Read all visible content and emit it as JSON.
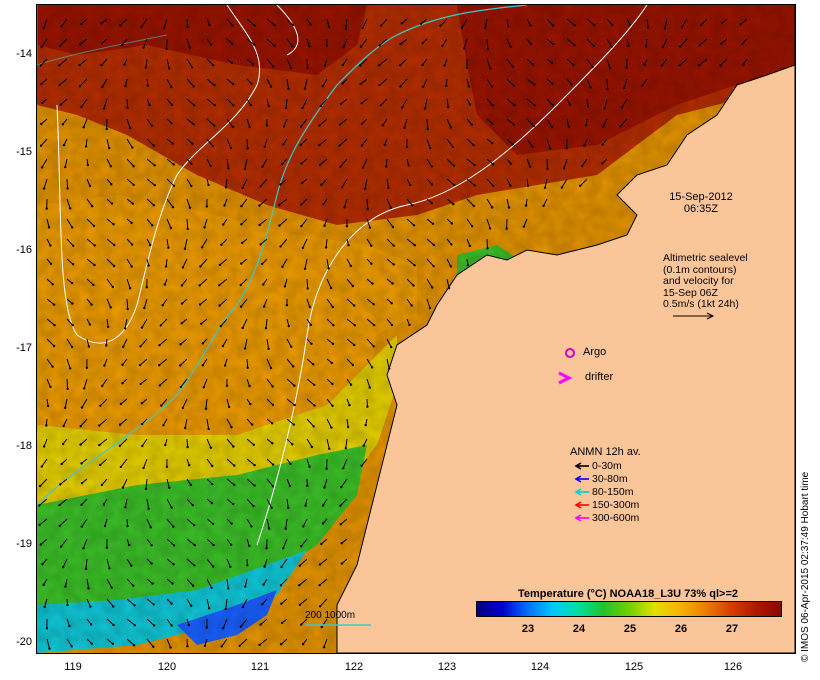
{
  "map": {
    "y_axis_labels": [
      "-14",
      "-15",
      "-16",
      "-17",
      "-18",
      "-19",
      "-20"
    ],
    "x_axis_labels": [
      "119",
      "120",
      "121",
      "122",
      "123",
      "124",
      "125",
      "126"
    ],
    "lon_range": [
      118.6,
      126.7
    ],
    "lat_range": [
      -20.05,
      -13.6
    ]
  },
  "annotations": {
    "date": "15-Sep-2012",
    "time": "06:35Z",
    "altimetry_lines": [
      "Altimetric sealevel",
      "(0.1m contours)",
      "and velocity for",
      "15-Sep 06Z",
      "0.5m/s (1kt 24h)"
    ],
    "argo_label": "Argo",
    "drifter_label": "drifter",
    "bathy_label": "200  1000m"
  },
  "legend": {
    "title": "ANMN 12h av.",
    "items": [
      {
        "label": "0-30m",
        "color": "#000000"
      },
      {
        "label": "30-80m",
        "color": "#0000ff"
      },
      {
        "label": "80-150m",
        "color": "#00cccc"
      },
      {
        "label": "150-300m",
        "color": "#ff0000"
      },
      {
        "label": "300-600m",
        "color": "#ff00ff"
      }
    ]
  },
  "colorbar": {
    "title": "Temperature (°C) NOAA18_L3U 73% ql>=2",
    "ticks": [
      "23",
      "24",
      "25",
      "26",
      "27"
    ]
  },
  "credit": "© IMOS 06-Apr-2015 02:37:49 Hobart time",
  "colors": {
    "land": "#fbc59a",
    "warm": "#b02a00",
    "mid": "#e49400",
    "cool": "#22c22a",
    "coldest": "#0050ff",
    "altimetry_contour": "#ffffff",
    "bathy_200m": "#40c8c8",
    "argo": "#cc00cc"
  }
}
